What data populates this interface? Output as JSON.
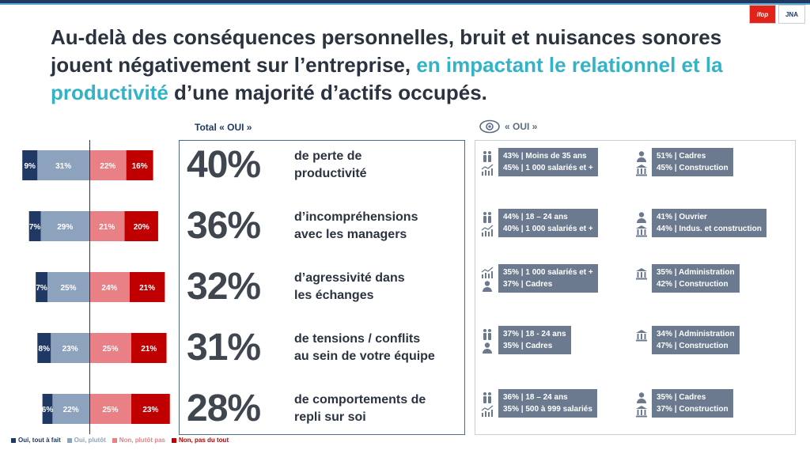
{
  "logos": {
    "ifop": "ifop",
    "jna": "JNA"
  },
  "headline": {
    "part1": "Au-delà des conséquences personnelles, bruit et nuisances sonores jouent négativement sur l’entreprise, ",
    "highlight": "en impactant le relationnel et la productivité",
    "part2": " d’une majorité d’actifs occupés."
  },
  "total_label": "Total « OUI »",
  "eye_label": "« OUI »",
  "colors": {
    "dark_blue": "#1f3864",
    "light_blue": "#8da3bd",
    "pink": "#e98086",
    "red": "#c00000",
    "accent": "#33b3c5"
  },
  "chart_data": {
    "type": "bar",
    "stacked": true,
    "orientation": "horizontal",
    "categories": [
      "de perte de productivité",
      "d’incompréhensions avec les managers",
      "d’agressivité dans les échanges",
      "de tensions / conflits au sein de votre équipe",
      "de comportements de repli sur soi"
    ],
    "series": [
      {
        "name": "Oui, tout à fait",
        "color": "#1f3864",
        "values": [
          9,
          7,
          7,
          8,
          6
        ],
        "labels": [
          "9%",
          "7%",
          "7%",
          "8%",
          "6%"
        ]
      },
      {
        "name": "Oui, plutôt",
        "color": "#8da3bd",
        "values": [
          31,
          29,
          25,
          23,
          22
        ],
        "labels": [
          "31%",
          "29%",
          "25%",
          "23%",
          "22%"
        ]
      },
      {
        "name": "Non, plutôt pas",
        "color": "#e98086",
        "values": [
          22,
          21,
          24,
          25,
          25
        ],
        "labels": [
          "22%",
          "21%",
          "24%",
          "25%",
          "25%"
        ]
      },
      {
        "name": "Non, pas du tout",
        "color": "#c00000",
        "values": [
          16,
          20,
          21,
          21,
          23
        ],
        "labels": [
          "16%",
          "20%",
          "21%",
          "21%",
          "23%"
        ]
      }
    ]
  },
  "stats": [
    {
      "value": "40%",
      "text1": "de perte de",
      "text2": "productivité"
    },
    {
      "value": "36%",
      "text1": "d’incompréhensions",
      "text2": "avec les managers"
    },
    {
      "value": "32%",
      "text1": "d’agressivité dans",
      "text2": "les échanges"
    },
    {
      "value": "31%",
      "text1": "de tensions / conflits",
      "text2": "au sein de votre équipe"
    },
    {
      "value": "28%",
      "text1": "de comportements de",
      "text2": "repli sur soi"
    }
  ],
  "profiles": [
    {
      "left": {
        "icons": [
          "people-icon",
          "chart-icon"
        ],
        "lines": [
          "43% | Moins de 35 ans",
          "45% | 1 000 salariés et +"
        ]
      },
      "right": {
        "icons": [
          "person-icon",
          "building-icon"
        ],
        "lines": [
          "51% | Cadres",
          "45% | Construction"
        ]
      }
    },
    {
      "left": {
        "icons": [
          "people-icon",
          "chart-icon"
        ],
        "lines": [
          "44% | 18 – 24 ans",
          "40% | 1 000 salariés et +"
        ]
      },
      "right": {
        "icons": [
          "person-icon",
          "building-icon"
        ],
        "lines": [
          "41% | Ouvrier",
          "44% | Indus. et construction"
        ]
      }
    },
    {
      "left": {
        "icons": [
          "chart-icon",
          "person-icon"
        ],
        "lines": [
          "35% | 1 000 salariés et +",
          "37% | Cadres"
        ]
      },
      "right": {
        "icons": [
          "building-icon"
        ],
        "lines": [
          "35% | Administration",
          "42% | Construction"
        ]
      }
    },
    {
      "left": {
        "icons": [
          "people-icon",
          "person-icon"
        ],
        "lines": [
          "37% | 18 - 24 ans",
          "35% | Cadres"
        ]
      },
      "right": {
        "icons": [
          "building-icon"
        ],
        "lines": [
          "34% | Administration",
          "47% | Construction"
        ]
      }
    },
    {
      "left": {
        "icons": [
          "people-icon",
          "chart-icon"
        ],
        "lines": [
          "36% | 18 – 24 ans",
          "35% | 500 à 999 salariés"
        ]
      },
      "right": {
        "icons": [
          "person-icon",
          "building-icon"
        ],
        "lines": [
          "35% | Cadres",
          "37% | Construction"
        ]
      }
    }
  ]
}
